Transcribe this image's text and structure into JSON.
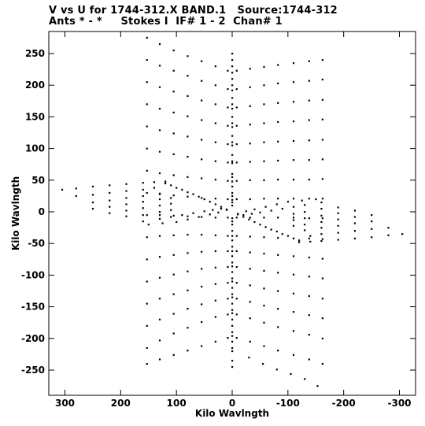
{
  "chart_data": {
    "type": "scatter",
    "title": "V vs U for 1744-312.X BAND.1   Source:1744-312",
    "subtitle": "Ants * - *     Stokes I  IF# 1 - 2  Chan# 1",
    "xlabel": "Kilo Wavlngth",
    "ylabel": "Kilo Wavlngth",
    "xlim": [
      320,
      -320
    ],
    "ylim": [
      -285,
      285
    ],
    "x_ticks": [
      300,
      200,
      100,
      0,
      -100,
      -200,
      -300
    ],
    "x_tick_labels": [
      "300",
      "200",
      "100",
      "0",
      "-100",
      "-200",
      "-300"
    ],
    "y_ticks": [
      250,
      200,
      150,
      100,
      50,
      0,
      -50,
      -100,
      -150,
      -200,
      -250
    ],
    "y_tick_labels": [
      "250",
      "200",
      "150",
      "100",
      "50",
      "0",
      "-50",
      "-100",
      "-150",
      "-200",
      "-250"
    ],
    "marker_color": "#000000",
    "points": [
      [
        153,
        275
      ],
      [
        130,
        265
      ],
      [
        105,
        255
      ],
      [
        80,
        246
      ],
      [
        55,
        238
      ],
      [
        30,
        230
      ],
      [
        8,
        223
      ],
      [
        0,
        220
      ],
      [
        -8,
        223
      ],
      [
        -32,
        226
      ],
      [
        -57,
        229
      ],
      [
        -82,
        232
      ],
      [
        -110,
        235
      ],
      [
        -138,
        238
      ],
      [
        -162,
        240
      ],
      [
        153,
        240
      ],
      [
        130,
        231
      ],
      [
        105,
        223
      ],
      [
        80,
        215
      ],
      [
        55,
        207
      ],
      [
        30,
        200
      ],
      [
        8,
        194
      ],
      [
        0,
        192
      ],
      [
        -8,
        194
      ],
      [
        -32,
        197
      ],
      [
        -57,
        200
      ],
      [
        -82,
        203
      ],
      [
        -110,
        205
      ],
      [
        -138,
        207
      ],
      [
        -162,
        209
      ],
      [
        153,
        205
      ],
      [
        130,
        197
      ],
      [
        105,
        190
      ],
      [
        80,
        183
      ],
      [
        55,
        176
      ],
      [
        30,
        170
      ],
      [
        8,
        165
      ],
      [
        0,
        163
      ],
      [
        -8,
        165
      ],
      [
        -32,
        167
      ],
      [
        -57,
        170
      ],
      [
        -82,
        172
      ],
      [
        -110,
        174
      ],
      [
        -138,
        176
      ],
      [
        -162,
        177
      ],
      [
        153,
        170
      ],
      [
        130,
        163
      ],
      [
        105,
        157
      ],
      [
        80,
        151
      ],
      [
        55,
        145
      ],
      [
        30,
        140
      ],
      [
        8,
        136
      ],
      [
        0,
        134
      ],
      [
        -8,
        136
      ],
      [
        -32,
        138
      ],
      [
        -57,
        140
      ],
      [
        -82,
        142
      ],
      [
        -110,
        143
      ],
      [
        -138,
        145
      ],
      [
        -162,
        146
      ],
      [
        153,
        135
      ],
      [
        130,
        129
      ],
      [
        105,
        124
      ],
      [
        80,
        119
      ],
      [
        55,
        114
      ],
      [
        30,
        110
      ],
      [
        8,
        107
      ],
      [
        0,
        105
      ],
      [
        -8,
        107
      ],
      [
        -32,
        108
      ],
      [
        -57,
        110
      ],
      [
        -82,
        111
      ],
      [
        -110,
        112
      ],
      [
        -138,
        113
      ],
      [
        -162,
        114
      ],
      [
        153,
        100
      ],
      [
        130,
        95
      ],
      [
        105,
        91
      ],
      [
        80,
        87
      ],
      [
        55,
        83
      ],
      [
        30,
        80
      ],
      [
        8,
        78
      ],
      [
        0,
        77
      ],
      [
        -8,
        78
      ],
      [
        -32,
        79
      ],
      [
        -57,
        80
      ],
      [
        -82,
        81
      ],
      [
        -110,
        82
      ],
      [
        -138,
        82
      ],
      [
        -162,
        83
      ],
      [
        153,
        65
      ],
      [
        130,
        61
      ],
      [
        105,
        58
      ],
      [
        80,
        55
      ],
      [
        55,
        53
      ],
      [
        30,
        51
      ],
      [
        8,
        49
      ],
      [
        0,
        48
      ],
      [
        -8,
        49
      ],
      [
        -32,
        50
      ],
      [
        -57,
        50
      ],
      [
        -82,
        51
      ],
      [
        -110,
        51
      ],
      [
        -138,
        51
      ],
      [
        -162,
        52
      ],
      [
        153,
        30
      ],
      [
        130,
        28
      ],
      [
        105,
        26
      ],
      [
        80,
        24
      ],
      [
        55,
        22
      ],
      [
        30,
        21
      ],
      [
        8,
        20
      ],
      [
        0,
        19
      ],
      [
        -8,
        20
      ],
      [
        -32,
        20
      ],
      [
        -57,
        21
      ],
      [
        -82,
        21
      ],
      [
        -110,
        21
      ],
      [
        -138,
        21
      ],
      [
        -162,
        21
      ],
      [
        153,
        -5
      ],
      [
        130,
        -5
      ],
      [
        105,
        -6
      ],
      [
        80,
        -7
      ],
      [
        55,
        -8
      ],
      [
        30,
        -9
      ],
      [
        8,
        -9
      ],
      [
        0,
        -10
      ],
      [
        -8,
        -9
      ],
      [
        -32,
        -9
      ],
      [
        -57,
        -9
      ],
      [
        -82,
        -9
      ],
      [
        -110,
        -9
      ],
      [
        -138,
        -10
      ],
      [
        -162,
        -10
      ],
      [
        153,
        -40
      ],
      [
        130,
        -38
      ],
      [
        105,
        -37
      ],
      [
        80,
        -36
      ],
      [
        55,
        -36
      ],
      [
        30,
        -37
      ],
      [
        8,
        -38
      ],
      [
        0,
        -38
      ],
      [
        -8,
        -38
      ],
      [
        -32,
        -39
      ],
      [
        -57,
        -40
      ],
      [
        -82,
        -41
      ],
      [
        -110,
        -42
      ],
      [
        -138,
        -42
      ],
      [
        -162,
        -43
      ],
      [
        153,
        -75
      ],
      [
        130,
        -71
      ],
      [
        105,
        -68
      ],
      [
        80,
        -65
      ],
      [
        55,
        -63
      ],
      [
        30,
        -62
      ],
      [
        8,
        -62
      ],
      [
        0,
        -62
      ],
      [
        -8,
        -62
      ],
      [
        -32,
        -64
      ],
      [
        -57,
        -66
      ],
      [
        -82,
        -68
      ],
      [
        -110,
        -70
      ],
      [
        -138,
        -72
      ],
      [
        -162,
        -74
      ],
      [
        153,
        -110
      ],
      [
        130,
        -104
      ],
      [
        105,
        -99
      ],
      [
        80,
        -94
      ],
      [
        55,
        -90
      ],
      [
        30,
        -88
      ],
      [
        8,
        -87
      ],
      [
        0,
        -86
      ],
      [
        -8,
        -87
      ],
      [
        -32,
        -90
      ],
      [
        -57,
        -93
      ],
      [
        -82,
        -96
      ],
      [
        -110,
        -99
      ],
      [
        -138,
        -102
      ],
      [
        -162,
        -105
      ],
      [
        153,
        -145
      ],
      [
        130,
        -137
      ],
      [
        105,
        -130
      ],
      [
        80,
        -124
      ],
      [
        55,
        -118
      ],
      [
        30,
        -114
      ],
      [
        8,
        -112
      ],
      [
        0,
        -110
      ],
      [
        -8,
        -112
      ],
      [
        -32,
        -116
      ],
      [
        -57,
        -121
      ],
      [
        -82,
        -125
      ],
      [
        -110,
        -129
      ],
      [
        -138,
        -133
      ],
      [
        -162,
        -137
      ],
      [
        153,
        -180
      ],
      [
        130,
        -170
      ],
      [
        105,
        -161
      ],
      [
        80,
        -153
      ],
      [
        55,
        -146
      ],
      [
        30,
        -140
      ],
      [
        8,
        -137
      ],
      [
        0,
        -135
      ],
      [
        -8,
        -137
      ],
      [
        -32,
        -142
      ],
      [
        -57,
        -148
      ],
      [
        -82,
        -153
      ],
      [
        -110,
        -158
      ],
      [
        -138,
        -163
      ],
      [
        -162,
        -168
      ],
      [
        153,
        -215
      ],
      [
        130,
        -203
      ],
      [
        105,
        -192
      ],
      [
        80,
        -183
      ],
      [
        55,
        -174
      ],
      [
        30,
        -166
      ],
      [
        8,
        -162
      ],
      [
        0,
        -160
      ],
      [
        -8,
        -162
      ],
      [
        -32,
        -168
      ],
      [
        -57,
        -175
      ],
      [
        -82,
        -182
      ],
      [
        -110,
        -188
      ],
      [
        -138,
        -194
      ],
      [
        -162,
        -200
      ],
      [
        153,
        -240
      ],
      [
        130,
        -233
      ],
      [
        105,
        -226
      ],
      [
        80,
        -219
      ],
      [
        55,
        -212
      ],
      [
        30,
        -205
      ],
      [
        8,
        -199
      ],
      [
        0,
        -196
      ],
      [
        -8,
        -199
      ],
      [
        -32,
        -205
      ],
      [
        -57,
        -212
      ],
      [
        -82,
        -219
      ],
      [
        -110,
        -226
      ],
      [
        -138,
        -233
      ],
      [
        -162,
        -240
      ],
      [
        0,
        -220
      ],
      [
        -30,
        -230
      ],
      [
        -55,
        -240
      ],
      [
        -80,
        -249
      ],
      [
        -105,
        -256
      ],
      [
        -130,
        -264
      ],
      [
        -153,
        -275
      ],
      [
        0,
        250
      ],
      [
        0,
        240
      ],
      [
        0,
        230
      ],
      [
        0,
        210
      ],
      [
        0,
        200
      ],
      [
        0,
        180
      ],
      [
        0,
        170
      ],
      [
        0,
        150
      ],
      [
        0,
        140
      ],
      [
        0,
        120
      ],
      [
        0,
        110
      ],
      [
        0,
        90
      ],
      [
        0,
        80
      ],
      [
        0,
        60
      ],
      [
        0,
        55
      ],
      [
        0,
        40
      ],
      [
        0,
        30
      ],
      [
        0,
        25
      ],
      [
        0,
        15
      ],
      [
        0,
        10
      ],
      [
        0,
        -15
      ],
      [
        0,
        -20
      ],
      [
        0,
        -30
      ],
      [
        0,
        -45
      ],
      [
        0,
        -55
      ],
      [
        0,
        -70
      ],
      [
        0,
        -80
      ],
      [
        0,
        -95
      ],
      [
        0,
        -105
      ],
      [
        0,
        -120
      ],
      [
        0,
        -130
      ],
      [
        0,
        -145
      ],
      [
        0,
        -155
      ],
      [
        0,
        -170
      ],
      [
        0,
        -180
      ],
      [
        0,
        -190
      ],
      [
        0,
        -205
      ],
      [
        0,
        -215
      ],
      [
        0,
        -235
      ],
      [
        0,
        -245
      ],
      [
        305,
        35
      ],
      [
        280,
        37
      ],
      [
        250,
        40
      ],
      [
        220,
        42
      ],
      [
        190,
        44
      ],
      [
        160,
        46
      ],
      [
        140,
        47
      ],
      [
        120,
        48
      ],
      [
        280,
        25
      ],
      [
        250,
        27
      ],
      [
        220,
        30
      ],
      [
        190,
        33
      ],
      [
        160,
        35
      ],
      [
        140,
        38
      ],
      [
        250,
        15
      ],
      [
        220,
        18
      ],
      [
        190,
        22
      ],
      [
        160,
        25
      ],
      [
        130,
        29
      ],
      [
        250,
        5
      ],
      [
        220,
        8
      ],
      [
        190,
        12
      ],
      [
        160,
        16
      ],
      [
        130,
        20
      ],
      [
        110,
        22
      ],
      [
        220,
        -2
      ],
      [
        190,
        2
      ],
      [
        160,
        6
      ],
      [
        130,
        10
      ],
      [
        110,
        13
      ],
      [
        190,
        -7
      ],
      [
        160,
        -5
      ],
      [
        130,
        0
      ],
      [
        110,
        3
      ],
      [
        160,
        -15
      ],
      [
        130,
        -11
      ],
      [
        110,
        -8
      ],
      [
        90,
        -5
      ],
      [
        70,
        -2
      ],
      [
        50,
        1
      ],
      [
        35,
        3
      ],
      [
        20,
        5
      ],
      [
        10,
        3
      ],
      [
        150,
        -20
      ],
      [
        125,
        -18
      ],
      [
        100,
        -16
      ],
      [
        80,
        -12
      ],
      [
        60,
        -8
      ],
      [
        40,
        -4
      ],
      [
        25,
        -1
      ],
      [
        120,
        45
      ],
      [
        110,
        42
      ],
      [
        100,
        38
      ],
      [
        90,
        35
      ],
      [
        80,
        31
      ],
      [
        70,
        28
      ],
      [
        60,
        24
      ],
      [
        50,
        20
      ],
      [
        40,
        16
      ],
      [
        30,
        12
      ],
      [
        20,
        8
      ],
      [
        10,
        4
      ],
      [
        -305,
        -35
      ],
      [
        -280,
        -37
      ],
      [
        -250,
        -40
      ],
      [
        -220,
        -42
      ],
      [
        -190,
        -44
      ],
      [
        -160,
        -46
      ],
      [
        -140,
        -47
      ],
      [
        -120,
        -48
      ],
      [
        -280,
        -25
      ],
      [
        -250,
        -27
      ],
      [
        -220,
        -30
      ],
      [
        -190,
        -33
      ],
      [
        -160,
        -35
      ],
      [
        -140,
        -38
      ],
      [
        -250,
        -15
      ],
      [
        -220,
        -18
      ],
      [
        -190,
        -22
      ],
      [
        -160,
        -25
      ],
      [
        -130,
        -29
      ],
      [
        -250,
        -5
      ],
      [
        -220,
        -8
      ],
      [
        -190,
        -12
      ],
      [
        -160,
        -16
      ],
      [
        -130,
        -20
      ],
      [
        -110,
        -22
      ],
      [
        -220,
        2
      ],
      [
        -190,
        -2
      ],
      [
        -160,
        -6
      ],
      [
        -130,
        -10
      ],
      [
        -110,
        -13
      ],
      [
        -190,
        7
      ],
      [
        -160,
        5
      ],
      [
        -130,
        0
      ],
      [
        -110,
        -3
      ],
      [
        -160,
        15
      ],
      [
        -130,
        11
      ],
      [
        -110,
        8
      ],
      [
        -90,
        5
      ],
      [
        -70,
        2
      ],
      [
        -50,
        -1
      ],
      [
        -35,
        -3
      ],
      [
        -20,
        -5
      ],
      [
        -10,
        -3
      ],
      [
        -150,
        20
      ],
      [
        -125,
        18
      ],
      [
        -100,
        16
      ],
      [
        -80,
        12
      ],
      [
        -60,
        8
      ],
      [
        -40,
        4
      ],
      [
        -25,
        1
      ],
      [
        -120,
        -45
      ],
      [
        -110,
        -42
      ],
      [
        -100,
        -38
      ],
      [
        -90,
        -35
      ],
      [
        -80,
        -31
      ],
      [
        -70,
        -28
      ],
      [
        -60,
        -24
      ],
      [
        -50,
        -20
      ],
      [
        -40,
        -16
      ],
      [
        -30,
        -12
      ],
      [
        -20,
        -8
      ],
      [
        -10,
        -4
      ]
    ]
  }
}
